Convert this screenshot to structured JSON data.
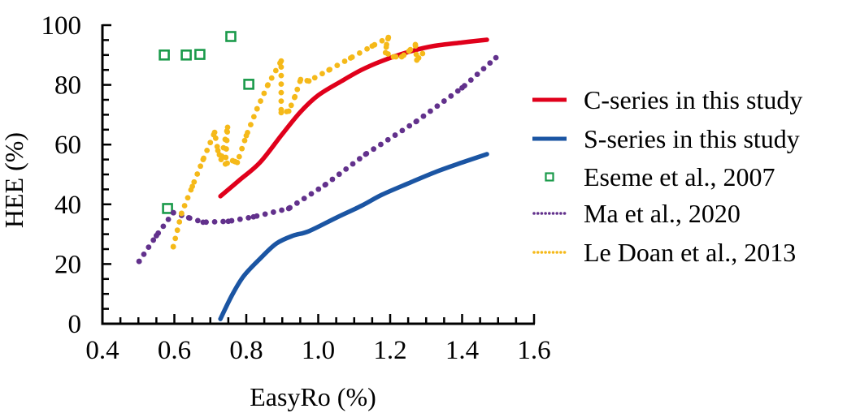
{
  "chart_data": {
    "type": "line",
    "title": "",
    "xlabel": "EasyRo (%)",
    "ylabel": "HEE (%)",
    "xlim": [
      0.4,
      1.6
    ],
    "ylim": [
      0,
      100
    ],
    "xticks": [
      "0.4",
      "0.6",
      "0.8",
      "1.0",
      "1.2",
      "1.4",
      "1.6"
    ],
    "yticks": [
      "0",
      "20",
      "40",
      "60",
      "80",
      "100"
    ],
    "grid": false,
    "legend_position": "right",
    "series": [
      {
        "name": "C-series in this study",
        "style": "solid-line",
        "color": "#e0001b",
        "x": [
          0.728,
          0.78,
          0.838,
          0.9,
          0.951,
          1.0,
          1.064,
          1.12,
          1.177,
          1.25,
          1.32,
          1.4,
          1.469
        ],
        "y": [
          42.7,
          48.0,
          54.0,
          63.5,
          71.0,
          76.5,
          81.2,
          85.0,
          88.0,
          91.0,
          93.0,
          94.2,
          95.1
        ]
      },
      {
        "name": "S-series in this study",
        "style": "solid-line",
        "color": "#1b55a3",
        "x": [
          0.728,
          0.76,
          0.793,
          0.84,
          0.884,
          0.93,
          0.974,
          1.05,
          1.12,
          1.177,
          1.25,
          1.33,
          1.4,
          1.469
        ],
        "y": [
          1.6,
          9.5,
          16.0,
          22.0,
          26.9,
          29.5,
          31.0,
          35.5,
          39.5,
          43.2,
          47.0,
          51.0,
          54.0,
          56.8
        ]
      },
      {
        "name": "Eseme et al., 2007",
        "style": "open-square",
        "color": "#1a9a4a",
        "x": [
          0.572,
          0.633,
          0.671,
          0.757,
          0.807,
          0.581
        ],
        "y": [
          90.0,
          90.0,
          90.2,
          96.2,
          80.2,
          38.6
        ]
      },
      {
        "name": "Ma et al., 2020",
        "style": "dotted-line",
        "color": "#62318c",
        "x": [
          0.502,
          0.55,
          0.597,
          0.64,
          0.68,
          0.75,
          0.82,
          0.918,
          1.019,
          1.132,
          1.272,
          1.4,
          1.494
        ],
        "y": [
          20.9,
          29.5,
          37.2,
          35.5,
          34.0,
          34.3,
          35.8,
          38.6,
          46.5,
          56.8,
          67.7,
          79.0,
          89.1
        ]
      },
      {
        "name": "Le Doan et al., 2013",
        "style": "dotted-line",
        "color": "#f5b919",
        "x": [
          0.597,
          0.62,
          0.65,
          0.68,
          0.712,
          0.721,
          0.73,
          0.748,
          0.742,
          0.762,
          0.775,
          0.8,
          0.83,
          0.86,
          0.897,
          0.897,
          0.918,
          0.935,
          0.951,
          0.974,
          1.03,
          1.09,
          1.15,
          1.195,
          1.19,
          1.187,
          1.209,
          1.232,
          1.252,
          1.27,
          1.274,
          1.29
        ],
        "y": [
          25.8,
          37.0,
          46.0,
          55.0,
          64.1,
          58.0,
          55.0,
          65.8,
          53.5,
          54.6,
          54.0,
          63.0,
          72.0,
          80.0,
          88.0,
          70.7,
          71.2,
          76.0,
          81.8,
          81.3,
          85.0,
          89.0,
          93.0,
          95.9,
          93.5,
          90.8,
          89.4,
          89.4,
          91.3,
          93.5,
          88.3,
          90.5
        ]
      }
    ]
  }
}
